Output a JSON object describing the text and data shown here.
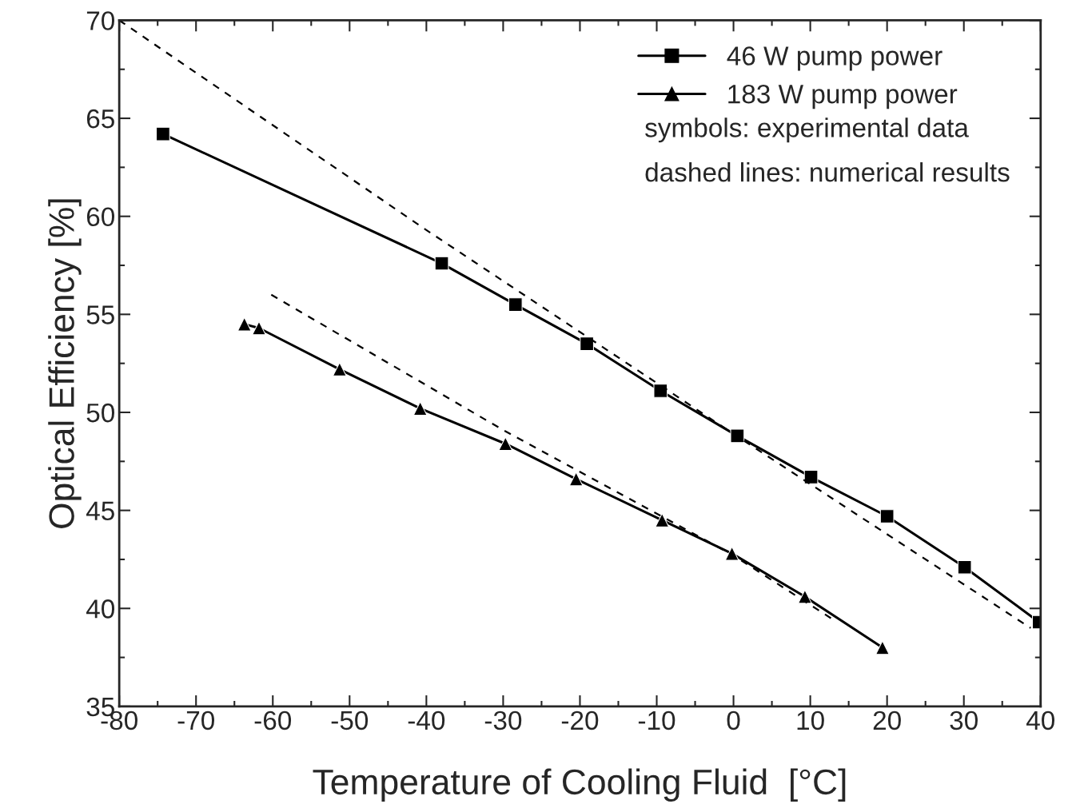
{
  "chart_data": {
    "type": "line",
    "xlabel": "Temperature of Cooling Fluid  [°C]",
    "ylabel": "Optical Efficiency [%]",
    "xlim": [
      -80,
      40
    ],
    "xticks": [
      -80,
      -70,
      -60,
      -50,
      -40,
      -30,
      -20,
      -10,
      0,
      10,
      20,
      30,
      40
    ],
    "ylim": [
      35,
      70
    ],
    "yticks": [
      35,
      40,
      45,
      50,
      55,
      60,
      65,
      70
    ],
    "grid": false,
    "legend": "top right",
    "annotations": [
      "symbols: experimental data",
      "dashed lines: numerical results"
    ],
    "series": [
      {
        "name": "46 W pump power",
        "color": "#000000",
        "marker": "square",
        "line_style": "solid",
        "x": [
          -74.3,
          -38.0,
          -28.4,
          -19.1,
          -9.5,
          0.5,
          10.1,
          20.0,
          30.1,
          39.8
        ],
        "values": [
          64.2,
          57.6,
          55.5,
          53.5,
          51.1,
          48.8,
          46.7,
          44.7,
          42.1,
          39.3
        ]
      },
      {
        "name": "183 W pump power",
        "color": "#000000",
        "marker": "triangle",
        "line_style": "solid",
        "x": [
          -63.7,
          -61.8,
          -51.3,
          -40.8,
          -29.7,
          -20.5,
          -9.3,
          -0.2,
          9.3,
          19.4
        ],
        "values": [
          54.5,
          54.3,
          52.2,
          50.2,
          48.4,
          46.6,
          44.5,
          42.8,
          40.6,
          38.0
        ]
      },
      {
        "color": "#000000",
        "marker": "none",
        "line_style": "dashed",
        "x": [
          -80,
          -40,
          0,
          38.7
        ],
        "values": [
          70,
          59.3,
          48.9,
          39.0
        ]
      },
      {
        "color": "#000000",
        "marker": "none",
        "line_style": "dashed",
        "x": [
          -60.2,
          -30,
          0,
          12.7
        ],
        "values": [
          56.0,
          49.1,
          42.7,
          39.5
        ]
      }
    ]
  }
}
